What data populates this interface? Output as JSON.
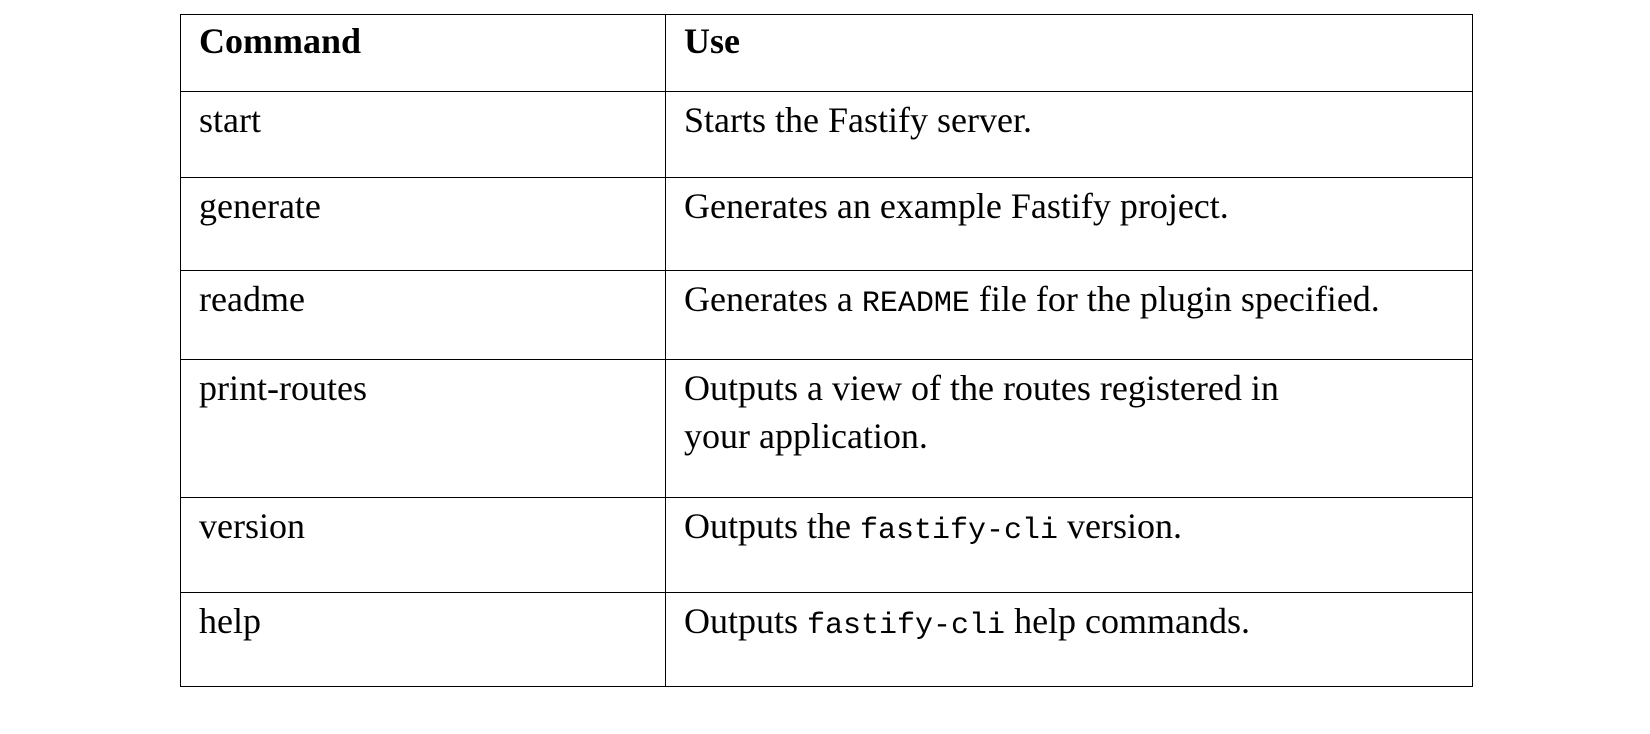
{
  "table": {
    "headers": [
      "Command",
      "Use"
    ],
    "rows": [
      {
        "command": "start",
        "use_pre": "Starts the Fastify server.",
        "use_code": "",
        "use_post": ""
      },
      {
        "command": "generate",
        "use_pre": "Generates an example Fastify project.",
        "use_code": "",
        "use_post": ""
      },
      {
        "command": "readme",
        "use_pre": "Generates a ",
        "use_code": "README",
        "use_post": " file for the plugin specified."
      },
      {
        "command": "print-routes",
        "use_pre": "Outputs a view of the routes registered in your application.",
        "use_code": "",
        "use_post": ""
      },
      {
        "command": "version",
        "use_pre": "Outputs the ",
        "use_code": "fastify-cli",
        "use_post": " version."
      },
      {
        "command": "help",
        "use_pre": "Outputs ",
        "use_code": "fastify-cli",
        "use_post": " help commands."
      }
    ]
  }
}
